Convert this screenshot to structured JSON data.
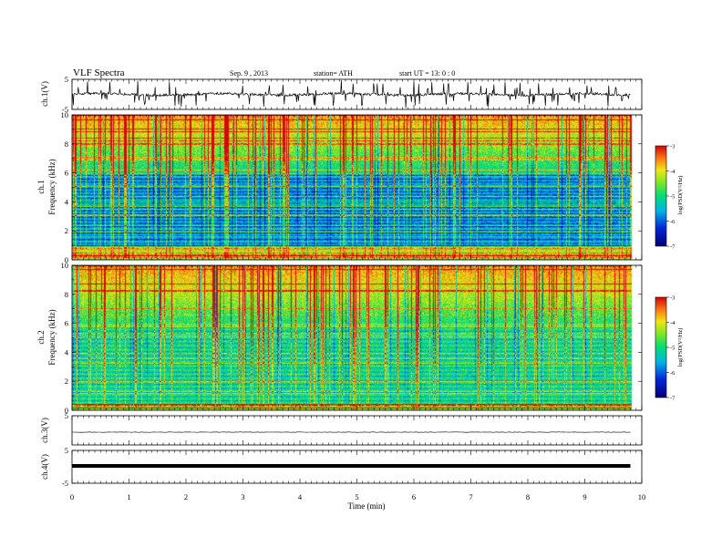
{
  "header": {
    "title": "VLF  Spectra",
    "date": "Sep. 9  , 2013",
    "station": "station= ATH",
    "start": "start  UT  =    13: 0  : 0"
  },
  "chart_data": {
    "type": "heatmap",
    "time_axis": {
      "label": "Time  (min)",
      "range": [
        0,
        10
      ],
      "ticks": [
        "0",
        "1",
        "2",
        "3",
        "4",
        "5",
        "6",
        "7",
        "8",
        "9",
        "10"
      ]
    },
    "channels": [
      {
        "type": "line",
        "ylabel": "ch.1(V)",
        "ylim": [
          -5,
          5
        ],
        "yticks": [
          "5",
          "-5"
        ],
        "trace": "black waveform with dense impulsive spikes",
        "x_end": 9.8
      },
      {
        "type": "heatmap",
        "ylabel_top": "ch.1",
        "ylabel": "Frequency  (kHz)",
        "ylim": [
          0,
          10
        ],
        "yticks": [
          "0",
          "2",
          "4",
          "6",
          "8",
          "10"
        ],
        "colorbar": {
          "label": "log(PSD(V²/Hz)",
          "range": [
            -7,
            -3
          ],
          "ticks": [
            "-3",
            "-4",
            "-5",
            "-6",
            "-7"
          ]
        },
        "x_end": 9.8
      },
      {
        "type": "heatmap",
        "ylabel_top": "ch.2",
        "ylabel": "Frequency  (kHz)",
        "ylim": [
          0,
          10
        ],
        "yticks": [
          "0",
          "2",
          "4",
          "6",
          "8",
          "10"
        ],
        "colorbar": {
          "label": "log(PSD(V²/Hz)",
          "range": [
            -7,
            -3
          ],
          "ticks": [
            "-3",
            "-4",
            "-5",
            "-6",
            "-7"
          ]
        },
        "x_end": 9.8
      },
      {
        "type": "line",
        "ylabel": "ch.3(V)",
        "ylim": [
          -5,
          5
        ],
        "yticks": [
          "5"
        ],
        "trace": "nearly flat thin line near 0",
        "x_end": 9.8
      },
      {
        "type": "line",
        "ylabel": "ch.4(V)",
        "ylim": [
          -5,
          5
        ],
        "yticks": [
          "5",
          "-5"
        ],
        "trace": "thick flat line near 0",
        "x_end": 9.8
      }
    ]
  }
}
